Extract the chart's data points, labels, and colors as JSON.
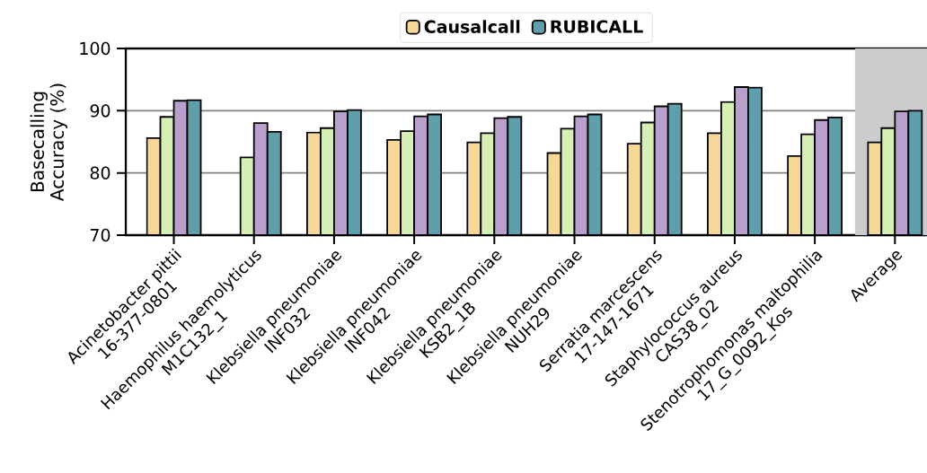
{
  "chart_data": {
    "type": "bar",
    "ylabel": "Basecalling\nAccuracy (%)",
    "categories": [
      "Acinetobacter pittii\n16-377-0801",
      "Haemophilus haemolyticus\nM1C132_1",
      "Klebsiella pneumoniae\nINF032",
      "Klebsiella pneumoniae\nINF042",
      "Klebsiella pneumoniae\nKSB2_1B",
      "Klebsiella pneumoniae\nNUH29",
      "Serratia marcescens\n17-147-1671",
      "Staphylococcus aureus\nCAS38_02",
      "Stenotrophomonas maltophilia\n17_G_0092_Kos",
      "Average"
    ],
    "series": [
      {
        "name": "Causalcall",
        "color": "#f5d797",
        "values": [
          85.6,
          null,
          86.5,
          85.3,
          84.9,
          83.2,
          84.7,
          86.4,
          82.7,
          84.9
        ]
      },
      {
        "color": "#d5efb5",
        "values": [
          89.0,
          82.5,
          87.2,
          86.7,
          86.4,
          87.1,
          88.1,
          91.4,
          86.2,
          87.2
        ]
      },
      {
        "color": "#b9a0cc",
        "values": [
          91.6,
          88.0,
          89.9,
          89.1,
          88.8,
          89.1,
          90.7,
          93.8,
          88.5,
          89.9
        ]
      },
      {
        "name": "RUBICALL",
        "color": "#5f9eab",
        "values": [
          91.7,
          86.6,
          90.1,
          89.4,
          89.0,
          89.4,
          91.1,
          93.7,
          88.9,
          90.0
        ]
      }
    ],
    "ylim": [
      70,
      100
    ],
    "yticks": [
      70,
      80,
      90,
      100
    ],
    "grid": "y",
    "legend": "top",
    "bands": [
      {
        "axis": "x",
        "from": "Average",
        "to": "Average",
        "color": "#cccccc"
      }
    ]
  }
}
